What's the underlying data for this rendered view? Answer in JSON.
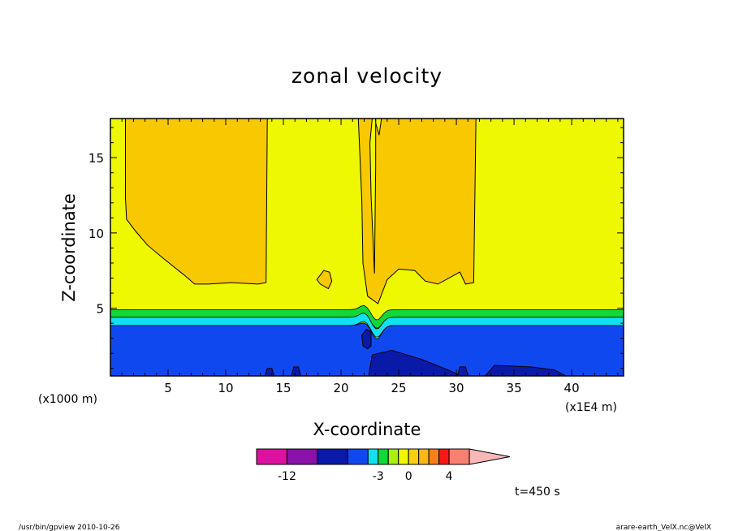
{
  "chart_data": {
    "type": "heatmap",
    "title": "zonal velocity",
    "xlabel": "X-coordinate",
    "ylabel": "Z-coordinate",
    "x_unit_left": "(x1000 m)",
    "x_unit_right": "(x1E4 m)",
    "xlim": [
      0,
      44.5
    ],
    "ylim": [
      0.5,
      17.6
    ],
    "x_ticks": [
      5,
      10,
      15,
      20,
      25,
      30,
      35,
      40
    ],
    "y_ticks": [
      5,
      10,
      15
    ],
    "x_tick_labels": [
      "5",
      "10",
      "15",
      "20",
      "25",
      "30",
      "35",
      "40"
    ],
    "y_tick_labels": [
      "5",
      "10",
      "15"
    ],
    "time_label": "t=450 s",
    "footer_left": "/usr/bin/gpview   2010-10-26",
    "footer_right": "arare-earth_VelX.nc@VelX",
    "colorbar": {
      "levels": [
        -15,
        -12,
        -9,
        -6,
        -4,
        -3,
        -2,
        -1,
        0,
        1,
        2,
        3,
        4,
        6,
        10
      ],
      "colors": [
        "#dd11a0",
        "#8a11aa",
        "#0a1aa8",
        "#1048f0",
        "#10e0f0",
        "#10d838",
        "#a8f010",
        "#eef800",
        "#f8d010",
        "#f8b818",
        "#f88018",
        "#f81818",
        "#f88070",
        "#f8b8b8"
      ],
      "tick_values": [
        -12,
        -3,
        0,
        4
      ],
      "tick_labels": [
        "-12",
        "-3",
        "0",
        "4"
      ]
    },
    "field_colors": {
      "dark_blue": "#0a1aa8",
      "blue": "#1048f0",
      "cyan": "#10e0f0",
      "green": "#10d838",
      "yellow": "#eef800",
      "orange": "#f8c800"
    },
    "regions": {
      "left_orange": [
        [
          1.3,
          17.6
        ],
        [
          13.6,
          17.6
        ],
        [
          13.5,
          6.7
        ],
        [
          12.8,
          6.6
        ],
        [
          10.5,
          6.7
        ],
        [
          8.5,
          6.6
        ],
        [
          7.3,
          6.6
        ],
        [
          6.4,
          7.2
        ],
        [
          4.6,
          8.3
        ],
        [
          3.2,
          9.2
        ],
        [
          2.2,
          10.1
        ],
        [
          1.4,
          10.9
        ],
        [
          1.3,
          12.3
        ]
      ],
      "right_orange": [
        [
          22.4,
          17.6
        ],
        [
          22.9,
          17.6
        ],
        [
          23.3,
          16.5
        ],
        [
          23.5,
          17.6
        ],
        [
          31.7,
          17.6
        ],
        [
          31.5,
          6.7
        ],
        [
          30.8,
          6.6
        ],
        [
          30.3,
          7.4
        ],
        [
          29.6,
          7.1
        ],
        [
          28.4,
          6.6
        ],
        [
          27.3,
          6.8
        ],
        [
          26.4,
          7.5
        ],
        [
          25.0,
          7.6
        ],
        [
          24.0,
          6.9
        ],
        [
          23.2,
          5.3
        ],
        [
          22.3,
          5.8
        ],
        [
          21.9,
          8.0
        ],
        [
          21.8,
          12.2
        ],
        [
          21.5,
          17.6
        ]
      ],
      "orange_blob": [
        [
          17.9,
          6.9
        ],
        [
          18.5,
          7.5
        ],
        [
          19.0,
          7.4
        ],
        [
          19.2,
          6.8
        ],
        [
          18.9,
          6.3
        ],
        [
          18.2,
          6.6
        ]
      ],
      "yellow_spike": [
        [
          22.7,
          17.6
        ],
        [
          23.0,
          17.6
        ],
        [
          23.0,
          14.5
        ],
        [
          22.9,
          7.3
        ],
        [
          22.6,
          12.5
        ],
        [
          22.5,
          16.0
        ]
      ],
      "green_band": {
        "bottom": 4.4,
        "top": 4.9
      },
      "cyan_band": {
        "bottom": 3.9,
        "top": 4.4
      },
      "blue_top": 3.85,
      "dark_blobs": [
        [
          [
            22.3,
            2.3
          ],
          [
            22.6,
            2.5
          ],
          [
            22.6,
            3.4
          ],
          [
            22.2,
            3.6
          ],
          [
            21.8,
            3.2
          ],
          [
            21.9,
            2.5
          ]
        ],
        [
          [
            22.4,
            0.5
          ],
          [
            22.7,
            1.9
          ],
          [
            24.4,
            2.2
          ],
          [
            27.0,
            1.6
          ],
          [
            29.6,
            0.8
          ],
          [
            30.3,
            0.5
          ]
        ],
        [
          [
            13.4,
            0.5
          ],
          [
            13.6,
            1.0
          ],
          [
            14.0,
            1.0
          ],
          [
            14.2,
            0.5
          ]
        ],
        [
          [
            15.7,
            0.5
          ],
          [
            15.9,
            1.1
          ],
          [
            16.3,
            1.1
          ],
          [
            16.5,
            0.5
          ]
        ],
        [
          [
            30.1,
            0.5
          ],
          [
            30.3,
            1.1
          ],
          [
            30.8,
            1.1
          ],
          [
            31.0,
            0.5
          ]
        ],
        [
          [
            32.5,
            0.5
          ],
          [
            33.3,
            1.2
          ],
          [
            36.5,
            1.1
          ],
          [
            38.5,
            0.9
          ],
          [
            39.5,
            0.5
          ]
        ]
      ]
    }
  }
}
